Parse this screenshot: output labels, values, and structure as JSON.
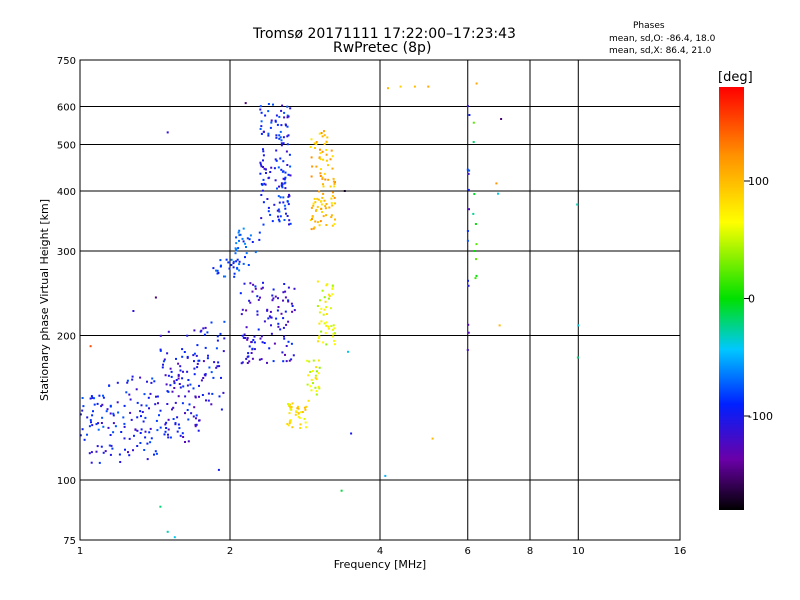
{
  "header": {
    "title_line1": "Tromsø 20171111 17:22:00–17:23:43",
    "title_line2": "RwPretec (8p)"
  },
  "phase_info": {
    "heading": "Phases",
    "o_line": "mean, sd,O: -86.4, 18.0",
    "x_line": "mean, sd,X:  86.4, 21.0"
  },
  "colorbar": {
    "label": "[deg]",
    "ticks": [
      {
        "value": 100,
        "label": "100"
      },
      {
        "value": 0,
        "label": "0"
      },
      {
        "value": -100,
        "label": "-100"
      }
    ],
    "range": [
      -180,
      180
    ]
  },
  "chart_data": {
    "type": "scatter",
    "title": "Tromsø 20171111 17:22:00–17:23:43",
    "subtitle": "RwPretec (8p)",
    "xlabel": "Frequency [MHz]",
    "ylabel": "Stationary phase Virtual Height [km]",
    "x_scale": "log",
    "y_scale": "log",
    "xlim": [
      1,
      16
    ],
    "ylim": [
      75,
      750
    ],
    "x_ticks": [
      1,
      2,
      4,
      6,
      8,
      10,
      16
    ],
    "y_ticks": [
      75,
      100,
      200,
      300,
      400,
      500,
      600,
      750
    ],
    "x_gridlines": [
      2,
      4,
      6,
      8,
      10
    ],
    "y_gridlines": [
      100,
      200,
      300,
      400,
      500,
      600
    ],
    "color_by": "phase_deg",
    "clusters": [
      {
        "f": [
          1.0,
          1.12
        ],
        "h": [
          108,
          150
        ],
        "phase": -95,
        "n": 40
      },
      {
        "f": [
          1.12,
          1.45
        ],
        "h": [
          108,
          165
        ],
        "phase": -100,
        "n": 90
      },
      {
        "f": [
          1.45,
          1.75
        ],
        "h": [
          120,
          205
        ],
        "phase": -105,
        "n": 110
      },
      {
        "f": [
          1.75,
          1.95
        ],
        "h": [
          140,
          215
        ],
        "phase": -100,
        "n": 40
      },
      {
        "f": [
          1.85,
          2.1
        ],
        "h": [
          265,
          290
        ],
        "phase": -85,
        "n": 25
      },
      {
        "f": [
          2.05,
          2.3
        ],
        "h": [
          280,
          335
        ],
        "phase": -80,
        "n": 30
      },
      {
        "f": [
          2.3,
          2.65
        ],
        "h": [
          340,
          610
        ],
        "phase": -95,
        "n": 140
      },
      {
        "f": [
          2.1,
          2.7
        ],
        "h": [
          175,
          260
        ],
        "phase": -110,
        "n": 110
      },
      {
        "f": [
          2.6,
          2.85
        ],
        "h": [
          128,
          145
        ],
        "phase": 80,
        "n": 40
      },
      {
        "f": [
          2.85,
          3.05
        ],
        "h": [
          145,
          180
        ],
        "phase": 60,
        "n": 25
      },
      {
        "f": [
          2.9,
          3.25
        ],
        "h": [
          330,
          540
        ],
        "phase": 100,
        "n": 100
      },
      {
        "f": [
          3.0,
          3.25
        ],
        "h": [
          190,
          260
        ],
        "phase": 60,
        "n": 45
      },
      {
        "f": [
          6.0,
          6.05
        ],
        "h": [
          170,
          640
        ],
        "phase": -100,
        "n": 14
      },
      {
        "f": [
          6.15,
          6.25
        ],
        "h": [
          210,
          640
        ],
        "phase": 0,
        "n": 10
      }
    ],
    "points": [
      {
        "x": 1.5,
        "y": 530,
        "phase": -110
      },
      {
        "x": 1.42,
        "y": 240,
        "phase": -150
      },
      {
        "x": 1.28,
        "y": 225,
        "phase": -110
      },
      {
        "x": 1.05,
        "y": 190,
        "phase": 150
      },
      {
        "x": 1.9,
        "y": 105,
        "phase": -100
      },
      {
        "x": 1.45,
        "y": 88,
        "phase": -20
      },
      {
        "x": 1.5,
        "y": 78,
        "phase": -30
      },
      {
        "x": 1.55,
        "y": 76,
        "phase": -40
      },
      {
        "x": 2.15,
        "y": 610,
        "phase": -150
      },
      {
        "x": 3.35,
        "y": 95,
        "phase": -10
      },
      {
        "x": 3.5,
        "y": 125,
        "phase": -100
      },
      {
        "x": 3.45,
        "y": 185,
        "phase": -40
      },
      {
        "x": 3.4,
        "y": 400,
        "phase": -170
      },
      {
        "x": 4.1,
        "y": 102,
        "phase": -50
      },
      {
        "x": 4.15,
        "y": 655,
        "phase": 100
      },
      {
        "x": 4.4,
        "y": 660,
        "phase": 90
      },
      {
        "x": 4.7,
        "y": 660,
        "phase": 100
      },
      {
        "x": 5.0,
        "y": 660,
        "phase": 110
      },
      {
        "x": 5.1,
        "y": 122,
        "phase": 100
      },
      {
        "x": 6.25,
        "y": 670,
        "phase": 110
      },
      {
        "x": 6.85,
        "y": 415,
        "phase": 120
      },
      {
        "x": 6.9,
        "y": 395,
        "phase": -40
      },
      {
        "x": 6.95,
        "y": 210,
        "phase": 100
      },
      {
        "x": 7.0,
        "y": 565,
        "phase": -150
      },
      {
        "x": 9.95,
        "y": 375,
        "phase": -30
      },
      {
        "x": 10.0,
        "y": 210,
        "phase": -40
      },
      {
        "x": 9.98,
        "y": 180,
        "phase": -20
      }
    ]
  }
}
